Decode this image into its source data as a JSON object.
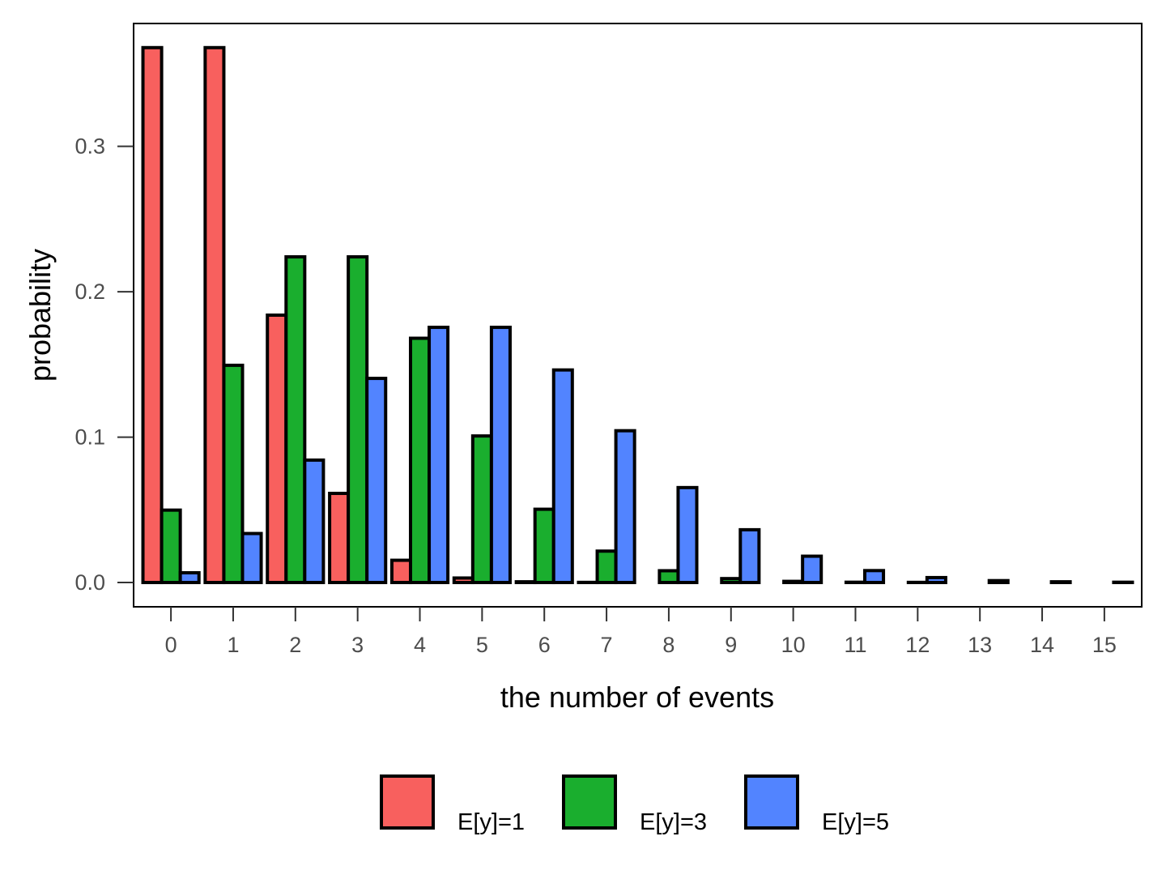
{
  "chart_data": {
    "type": "bar",
    "title": "",
    "xlabel": "the number of events",
    "ylabel": "probability",
    "categories": [
      "0",
      "1",
      "2",
      "3",
      "4",
      "5",
      "6",
      "7",
      "8",
      "9",
      "10",
      "11",
      "12",
      "13",
      "14",
      "15"
    ],
    "series": [
      {
        "name": "E[y]=1",
        "color": "#F8605E",
        "values": [
          0.3679,
          0.3679,
          0.1839,
          0.0613,
          0.0153,
          0.0031,
          0.0005,
          0.0001,
          0.0,
          0.0,
          0.0,
          0.0,
          0.0,
          0.0,
          0.0,
          0.0
        ]
      },
      {
        "name": "E[y]=3",
        "color": "#1AAE2E",
        "values": [
          0.0498,
          0.1494,
          0.224,
          0.224,
          0.168,
          0.1008,
          0.0504,
          0.0216,
          0.0081,
          0.0027,
          0.0008,
          0.0002,
          0.0001,
          0.0,
          0.0,
          0.0
        ]
      },
      {
        "name": "E[y]=5",
        "color": "#5284FF",
        "values": [
          0.0067,
          0.0337,
          0.0842,
          0.1404,
          0.1755,
          0.1755,
          0.1462,
          0.1044,
          0.0653,
          0.0363,
          0.0181,
          0.0082,
          0.0034,
          0.0013,
          0.0005,
          0.0002
        ]
      }
    ],
    "yticks": [
      "0.0",
      "0.1",
      "0.2",
      "0.3"
    ],
    "ytick_values": [
      0,
      0.1,
      0.2,
      0.3
    ],
    "ylim": [
      -0.0167,
      0.3845
    ],
    "xlim": [
      -0.6,
      15.6
    ],
    "grid": false,
    "legend_position": "bottom",
    "bar_outline_color": "#000000",
    "tick_label_color": "#4d4d4d"
  }
}
